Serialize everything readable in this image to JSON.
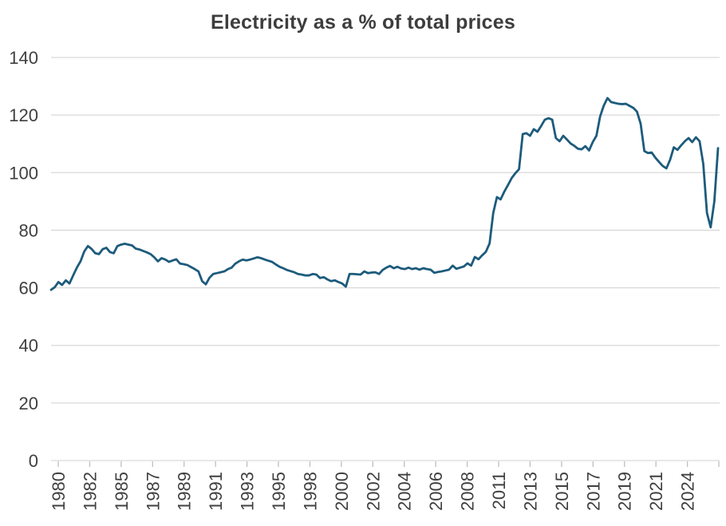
{
  "title": "Electricity as a % of total prices",
  "colors": {
    "background": "#FFFFFF",
    "line": "#1D5B7C",
    "gridline": "#D9D9D9",
    "tick": "#BFBFBF",
    "axis_text": "#404040",
    "title_text": "#3D3D3D"
  },
  "chart_data": {
    "type": "line",
    "title": "Electricity as a % of total prices",
    "frequency": "quarterly",
    "period_start": "1980 Q1",
    "period_end": "2025 Q2",
    "xlabel": "",
    "ylabel": "",
    "ylim": [
      0,
      140
    ],
    "y_ticks": [
      0,
      20,
      40,
      60,
      80,
      100,
      120,
      140
    ],
    "x_tick_labels": [
      "1980",
      "1982",
      "1985",
      "1987",
      "1989",
      "1991",
      "1993",
      "1995",
      "1998",
      "2000",
      "2002",
      "2004",
      "2006",
      "2008",
      "2011",
      "2013",
      "2015",
      "2017",
      "2019",
      "2021",
      "2024"
    ],
    "grid": "horizontal-only",
    "legend": "none",
    "series": [
      {
        "name": "Electricity as a % of total prices",
        "color": "#1D5B7C",
        "values": [
          59.3,
          60.2,
          62.0,
          61.0,
          62.6,
          61.5,
          64.3,
          67.0,
          69.2,
          72.6,
          74.5,
          73.5,
          72.0,
          71.7,
          73.4,
          73.9,
          72.4,
          72.0,
          74.5,
          75.0,
          75.3,
          75.0,
          74.7,
          73.6,
          73.3,
          72.8,
          72.3,
          71.7,
          70.6,
          69.2,
          70.3,
          69.8,
          69.0,
          69.5,
          69.9,
          68.4,
          68.2,
          67.9,
          67.2,
          66.5,
          65.7,
          62.3,
          61.2,
          63.5,
          64.8,
          65.1,
          65.4,
          65.7,
          66.5,
          67.0,
          68.4,
          69.2,
          69.8,
          69.5,
          69.8,
          70.2,
          70.6,
          70.3,
          69.8,
          69.4,
          69.0,
          68.1,
          67.3,
          66.8,
          66.2,
          65.8,
          65.4,
          64.8,
          64.6,
          64.3,
          64.3,
          64.8,
          64.6,
          63.4,
          63.7,
          62.9,
          62.3,
          62.6,
          62.0,
          61.5,
          60.4,
          64.8,
          64.8,
          64.7,
          64.6,
          65.7,
          65.1,
          65.3,
          65.4,
          64.8,
          66.2,
          67.0,
          67.6,
          66.8,
          67.3,
          66.7,
          66.5,
          67.0,
          66.5,
          66.8,
          66.3,
          66.8,
          66.5,
          66.3,
          65.2,
          65.5,
          65.7,
          66.0,
          66.3,
          67.7,
          66.6,
          67.0,
          67.4,
          68.5,
          67.7,
          70.7,
          69.9,
          71.3,
          72.5,
          75.4,
          86.0,
          91.5,
          90.7,
          93.4,
          95.7,
          98.1,
          99.8,
          101.2,
          113.4,
          113.7,
          112.8,
          115.1,
          114.2,
          116.2,
          118.4,
          118.9,
          118.4,
          112.0,
          110.9,
          112.8,
          111.5,
          110.1,
          109.3,
          108.3,
          108.1,
          109.2,
          107.7,
          110.6,
          112.8,
          119.5,
          123.3,
          125.9,
          124.5,
          124.2,
          123.9,
          123.8,
          123.9,
          123.2,
          122.5,
          121.2,
          117.0,
          107.5,
          106.8,
          107.0,
          105.2,
          103.7,
          102.3,
          101.5,
          104.5,
          108.8,
          107.9,
          109.5,
          110.9,
          112.0,
          110.6,
          112.3,
          110.9,
          103.0,
          86.0,
          81.0,
          90.0,
          108.5
        ]
      }
    ]
  }
}
